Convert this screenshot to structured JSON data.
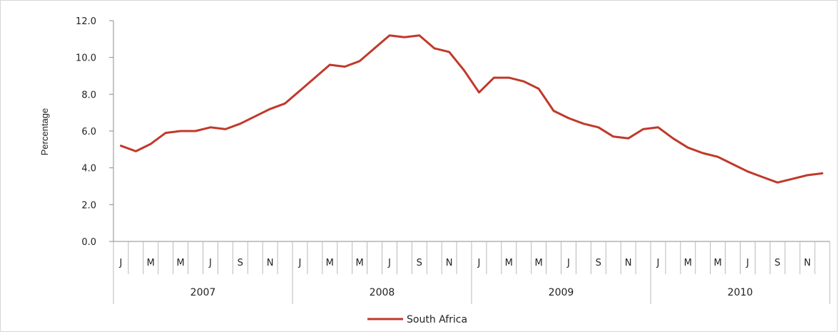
{
  "chart_data": {
    "type": "line",
    "title": "",
    "xlabel": "",
    "ylabel": "Percentage",
    "ylim": [
      0,
      12
    ],
    "yticks": [
      "0.0",
      "2.0",
      "4.0",
      "6.0",
      "8.0",
      "10.0",
      "12.0"
    ],
    "grid": false,
    "legend_position": "bottom",
    "month_tick_labels": [
      "J",
      "M",
      "M",
      "J",
      "S",
      "N"
    ],
    "years": [
      "2007",
      "2008",
      "2009",
      "2010"
    ],
    "x": [
      "2007-01",
      "2007-02",
      "2007-03",
      "2007-04",
      "2007-05",
      "2007-06",
      "2007-07",
      "2007-08",
      "2007-09",
      "2007-10",
      "2007-11",
      "2007-12",
      "2008-01",
      "2008-02",
      "2008-03",
      "2008-04",
      "2008-05",
      "2008-06",
      "2008-07",
      "2008-08",
      "2008-09",
      "2008-10",
      "2008-11",
      "2008-12",
      "2009-01",
      "2009-02",
      "2009-03",
      "2009-04",
      "2009-05",
      "2009-06",
      "2009-07",
      "2009-08",
      "2009-09",
      "2009-10",
      "2009-11",
      "2009-12",
      "2010-01",
      "2010-02",
      "2010-03",
      "2010-04",
      "2010-05",
      "2010-06",
      "2010-07",
      "2010-08",
      "2010-09",
      "2010-10",
      "2010-11",
      "2010-12"
    ],
    "series": [
      {
        "name": "South Africa",
        "color": "#c0392b",
        "values": [
          5.2,
          4.9,
          5.3,
          5.9,
          6.0,
          6.0,
          6.2,
          6.1,
          6.4,
          6.8,
          7.2,
          7.5,
          8.2,
          8.9,
          9.6,
          9.5,
          9.8,
          10.5,
          11.2,
          11.1,
          11.2,
          10.5,
          10.3,
          9.3,
          8.1,
          8.9,
          8.9,
          8.7,
          8.3,
          7.1,
          6.7,
          6.4,
          6.2,
          5.7,
          5.6,
          6.1,
          6.2,
          5.6,
          5.1,
          4.8,
          4.6,
          4.2,
          3.8,
          3.5,
          3.2,
          3.4,
          3.6,
          3.7
        ]
      }
    ]
  }
}
